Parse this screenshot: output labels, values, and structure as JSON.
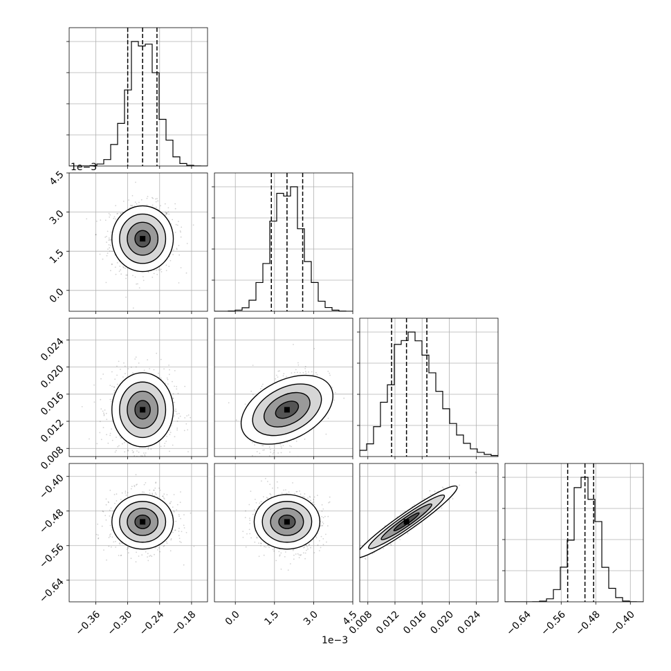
{
  "chart_data": {
    "type": "corner",
    "parameters": 4,
    "grid": true,
    "axes": [
      {
        "index": 0,
        "range": [
          -0.41,
          -0.15
        ],
        "ticks": [
          -0.36,
          -0.3,
          -0.24,
          -0.18
        ],
        "tick_labels": [
          "−0.36",
          "−0.30",
          "−0.24",
          "−0.18"
        ],
        "offset": "",
        "median": -0.272,
        "q16": -0.3,
        "q84": -0.245
      },
      {
        "index": 1,
        "range": [
          -0.0008,
          0.0045
        ],
        "ticks": [
          0.0,
          0.0015,
          0.003,
          0.0045
        ],
        "tick_labels": [
          "0.0",
          "1.5",
          "3.0",
          "4.5"
        ],
        "offset": "1e−3",
        "median": 0.00198,
        "q16": 0.00138,
        "q84": 0.00258
      },
      {
        "index": 2,
        "range": [
          0.0068,
          0.0272
        ],
        "ticks": [
          0.008,
          0.012,
          0.016,
          0.02,
          0.024
        ],
        "tick_labels": [
          "0.008",
          "0.012",
          "0.016",
          "0.020",
          "0.024"
        ],
        "offset": "",
        "median": 0.0137,
        "q16": 0.0115,
        "q84": 0.0167
      },
      {
        "index": 3,
        "range": [
          -0.69,
          -0.37
        ],
        "ticks": [
          -0.64,
          -0.56,
          -0.48,
          -0.4
        ],
        "tick_labels": [
          "−0.64",
          "−0.56",
          "−0.48",
          "−0.40"
        ],
        "offset": "",
        "median": -0.505,
        "q16": -0.545,
        "q84": -0.485
      }
    ],
    "correlations": {
      "2-1": 0.45,
      "3-2": 0.95
    }
  }
}
